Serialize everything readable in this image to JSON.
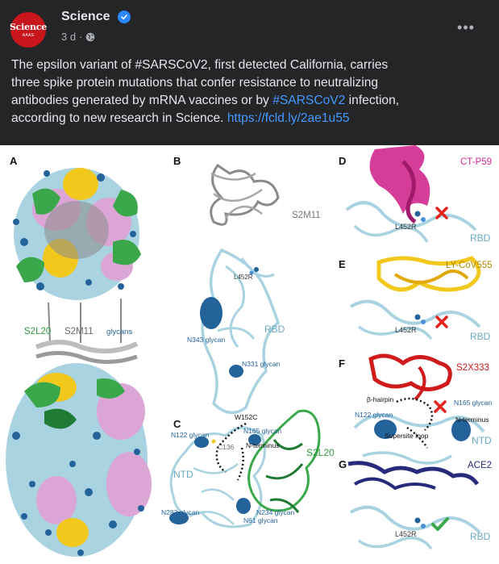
{
  "post": {
    "author": "Science",
    "avatar_text": "Science",
    "avatar_subtext": "AAAS",
    "timestamp": "3 d",
    "separator": "·",
    "more_label": "•••",
    "text_lines": [
      {
        "parts": [
          {
            "t": "The epsilon variant of #SARSCoV2, first detected California, carries",
            "k": "text"
          }
        ]
      },
      {
        "parts": [
          {
            "t": "three spike protein mutations that confer resistance to neutralizing",
            "k": "text"
          }
        ]
      },
      {
        "parts": [
          {
            "t": "antibodies generated by mRNA vaccines or by ",
            "k": "text"
          },
          {
            "t": "#SARSCoV2",
            "k": "hashtag"
          },
          {
            "t": " infection,",
            "k": "text"
          }
        ]
      },
      {
        "parts": [
          {
            "t": "according to new research in Science. ",
            "k": "text"
          },
          {
            "t": "https://fcld.ly/2ae1u55",
            "k": "link"
          }
        ]
      }
    ]
  },
  "figure": {
    "panel_letters": {
      "a": "A",
      "b": "B",
      "c": "C",
      "d": "D",
      "e": "E",
      "f": "F",
      "g": "G"
    },
    "panel_a": {
      "label_1": "S2L20",
      "label_2": "S2M11",
      "label_3": "glycans"
    },
    "panel_b": {
      "antibody": "S2M11",
      "mutation": "L452R",
      "domain": "RBD",
      "glycan_1": "N343 glycan",
      "glycan_2": "N331 glycan"
    },
    "panel_c": {
      "w152c": "W152C",
      "n122": "N122 glycan",
      "n165": "N165 glycan",
      "c136": "C136",
      "nterm": "N-terminus",
      "antibody": "S2L20",
      "domain": "NTD",
      "n282": "N282 glycan",
      "n234": "N234 glycan",
      "n61": "N61 glycan"
    },
    "panel_d": {
      "antibody": "CT-P59",
      "mutation": "L452R",
      "domain": "RBD"
    },
    "panel_e": {
      "antibody": "LY-CoV555",
      "mutation": "L452R",
      "domain": "RBD"
    },
    "panel_f": {
      "antibody": "S2X333",
      "hairpin": "β-hairpin",
      "n165": "N165 glycan",
      "n122": "N122 glycan",
      "nterm": "N-terminus",
      "supersite": "Supersite loop",
      "domain": "NTD"
    },
    "panel_g": {
      "receptor": "ACE2",
      "mutation": "L452R",
      "domain": "RBD"
    },
    "colors": {
      "rbd": "#a9d3e0",
      "glycan": "#24629a",
      "s2l20": "#3aa84a",
      "s2m11": "#8a8a8a",
      "ctp59": "#d0288e",
      "lycov555": "#f2c81c",
      "s2x333": "#cf1b1b",
      "ace2": "#262a7a",
      "cross": "#e5231c",
      "check": "#3aa84a",
      "spike_pink": "#dba6d6"
    }
  }
}
